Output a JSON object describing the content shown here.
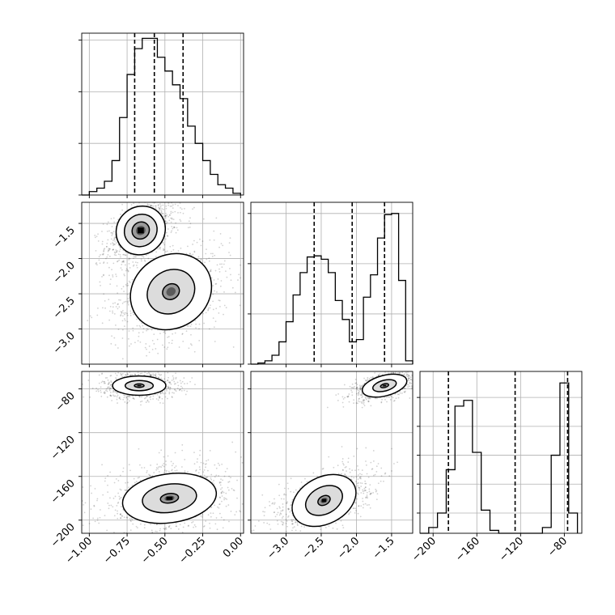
{
  "chart_data": {
    "type": "corner",
    "title": "",
    "grid": true,
    "style": {
      "line_color": "#000000",
      "grid_color": "#b0b0b0",
      "scatter_color": "#000000",
      "density_colors": [
        "#dcdcdc",
        "#9a9a9a",
        "#5a5a5a",
        "#000000"
      ]
    },
    "parameters": [
      {
        "range": [
          -1.05,
          0.02
        ],
        "ticks": [
          -1.0,
          -0.75,
          -0.5,
          -0.25,
          0.0
        ],
        "tick_labels": [
          "−1.00",
          "−0.75",
          "−0.50",
          "−0.25",
          "0.00"
        ],
        "quantiles": [
          -0.7,
          -0.57,
          -0.38
        ],
        "histogram": {
          "edges": [
            -1.05,
            -1.0,
            -0.95,
            -0.9,
            -0.85,
            -0.8,
            -0.75,
            -0.7,
            -0.65,
            -0.6,
            -0.55,
            -0.5,
            -0.45,
            -0.4,
            -0.35,
            -0.3,
            -0.25,
            -0.2,
            -0.15,
            -0.1,
            -0.05,
            0.0
          ],
          "counts": [
            0,
            2,
            4,
            8,
            20,
            45,
            70,
            85,
            91,
            91,
            80,
            72,
            64,
            56,
            40,
            30,
            20,
            12,
            6,
            4,
            1
          ],
          "ylim": [
            0,
            94
          ],
          "y_grid": [
            0,
            30,
            60,
            90
          ]
        }
      },
      {
        "range": [
          -3.5,
          -1.2
        ],
        "ticks": [
          -3.0,
          -2.5,
          -2.0,
          -1.5
        ],
        "tick_labels": [
          "−3.0",
          "−2.5",
          "−2.0",
          "−1.5"
        ],
        "quantiles": [
          -2.6,
          -2.06,
          -1.6
        ],
        "histogram": {
          "edges": [
            -3.5,
            -3.4,
            -3.3,
            -3.2,
            -3.1,
            -3.0,
            -2.9,
            -2.8,
            -2.7,
            -2.6,
            -2.5,
            -2.4,
            -2.3,
            -2.2,
            -2.1,
            -2.0,
            -1.9,
            -1.8,
            -1.7,
            -1.6,
            -1.5,
            -1.4,
            -1.3,
            -1.2
          ],
          "counts": [
            0,
            1,
            3,
            8,
            20,
            38,
            62,
            82,
            96,
            97,
            94,
            82,
            57,
            40,
            20,
            22,
            60,
            80,
            113,
            134,
            135,
            75,
            3
          ],
          "ylim": [
            0,
            145
          ],
          "y_grid": [
            0,
            45,
            90,
            135
          ]
        }
      },
      {
        "range": [
          -212,
          -64
        ],
        "ticks": [
          -200,
          -160,
          -120,
          -80
        ],
        "tick_labels": [
          "−200",
          "−160",
          "−120",
          "−80"
        ],
        "quantiles": [
          -186,
          -125,
          -77
        ],
        "histogram": {
          "edges": [
            -212,
            -204,
            -196,
            -188,
            -180,
            -172,
            -164,
            -156,
            -148,
            -140,
            -132,
            -124,
            -116,
            -108,
            -100,
            -92,
            -84,
            -76,
            -68
          ],
          "counts": [
            0,
            2,
            7,
            22,
            44,
            46,
            28,
            8,
            1,
            0,
            0,
            0,
            0,
            0,
            2,
            27,
            52,
            7
          ],
          "ylim": [
            0,
            56
          ],
          "y_grid": [
            7,
            17,
            27,
            37,
            47
          ]
        }
      }
    ],
    "pairs": [
      {
        "x_param": 0,
        "y_param": 1,
        "modes": [
          {
            "center": [
              -0.66,
              -1.6
            ],
            "spread": [
              0.062,
              0.124
            ],
            "corr": 0.5,
            "weight": 0.5,
            "contour_levels": [
              0.95,
              1.8,
              2.7
            ],
            "peak_label_pos": [
              -0.63,
              -1.55
            ]
          },
          {
            "center": [
              -0.46,
              -2.47
            ],
            "spread": [
              0.105,
              0.195
            ],
            "corr": 0.3,
            "weight": 0.5,
            "contour_levels": [
              0.55,
              1.55,
              2.65
            ],
            "peak_label_pos": [
              -0.5,
              -2.45
            ]
          }
        ]
      },
      {
        "x_param": 0,
        "y_param": 2,
        "modes": [
          {
            "center": [
              -0.67,
              -77
            ],
            "spread": [
              0.064,
              3.2
            ],
            "corr": 0.0,
            "weight": 0.5,
            "contour_levels": [
              0.5,
              1.45,
              2.75
            ]
          },
          {
            "center": [
              -0.47,
              -180
            ],
            "spread": [
              0.12,
              8.6
            ],
            "corr": 0.2,
            "weight": 0.5,
            "contour_levels": [
              0.5,
              1.5,
              2.6
            ]
          }
        ]
      },
      {
        "x_param": 1,
        "y_param": 2,
        "modes": [
          {
            "center": [
              -1.6,
              -77
            ],
            "spread": [
              0.118,
              3.4
            ],
            "corr": 0.5,
            "weight": 0.5,
            "contour_levels": [
              0.5,
              1.45,
              2.75
            ]
          },
          {
            "center": [
              -2.46,
              -182
            ],
            "spread": [
              0.185,
              8.2
            ],
            "corr": 0.55,
            "weight": 0.5,
            "contour_levels": [
              0.5,
              1.5,
              2.6
            ]
          }
        ]
      }
    ]
  }
}
